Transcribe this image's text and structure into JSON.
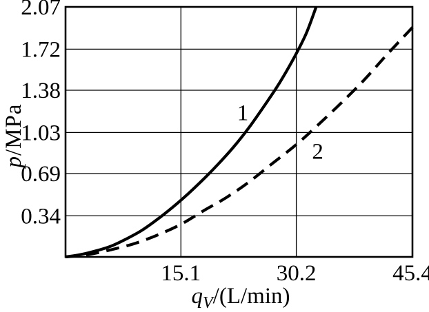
{
  "figure": {
    "background": "#ffffff",
    "line_color": "#000000"
  },
  "chart_data": {
    "type": "line",
    "title": "",
    "xlabel": {
      "symbol": "q",
      "subscript": "V",
      "rest": "/(L/min)"
    },
    "ylabel": {
      "symbol": "p",
      "rest": "/MPa"
    },
    "xlim": [
      0,
      45.4
    ],
    "ylim": [
      0,
      2.07
    ],
    "grid": true,
    "legend_position": "none",
    "x_ticks": [
      {
        "value": 15.1,
        "label": "15.1"
      },
      {
        "value": 30.2,
        "label": "30.2"
      },
      {
        "value": 45.4,
        "label": "45.4"
      }
    ],
    "y_ticks": [
      {
        "value": 0.34,
        "label": "0.34"
      },
      {
        "value": 0.69,
        "label": "0.69"
      },
      {
        "value": 1.03,
        "label": "1.03"
      },
      {
        "value": 1.38,
        "label": "1.38"
      },
      {
        "value": 1.72,
        "label": "1.72"
      },
      {
        "value": 2.07,
        "label": "2.07"
      }
    ],
    "series": [
      {
        "name": "1",
        "style": "solid",
        "label_pos": {
          "x": 23.2,
          "y": 1.2
        },
        "x": [
          0,
          2,
          4,
          6,
          8,
          10,
          12,
          14,
          16,
          18,
          20,
          22,
          24,
          26,
          28,
          30,
          31.5,
          32.8
        ],
        "y": [
          0,
          0.02,
          0.05,
          0.09,
          0.15,
          0.22,
          0.31,
          0.41,
          0.52,
          0.64,
          0.77,
          0.91,
          1.07,
          1.25,
          1.44,
          1.66,
          1.85,
          2.07
        ]
      },
      {
        "name": "2",
        "style": "dashed",
        "label_pos": {
          "x": 33.0,
          "y": 0.88
        },
        "x": [
          0,
          3,
          6,
          9,
          12,
          15.1,
          18,
          21,
          24,
          27,
          30.2,
          33,
          36,
          39,
          42,
          45.4
        ],
        "y": [
          0,
          0.02,
          0.06,
          0.11,
          0.18,
          0.27,
          0.38,
          0.49,
          0.62,
          0.77,
          0.93,
          1.09,
          1.27,
          1.46,
          1.67,
          1.9
        ]
      }
    ]
  }
}
